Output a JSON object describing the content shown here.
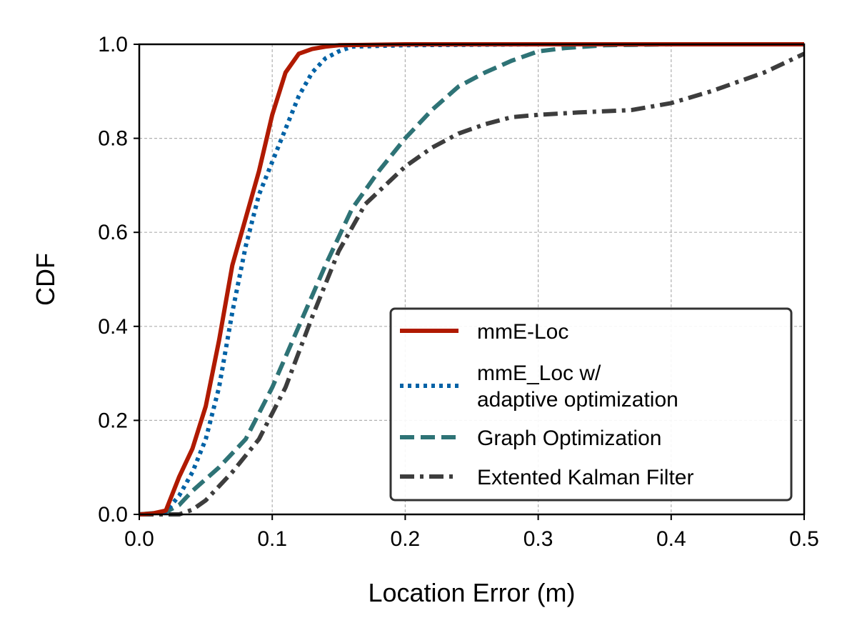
{
  "chart_data": {
    "type": "line",
    "title": "",
    "xlabel": "Location Error (m)",
    "ylabel": "CDF",
    "xlim": [
      0.0,
      0.5
    ],
    "ylim": [
      0.0,
      1.0
    ],
    "xticks": [
      0.0,
      0.1,
      0.2,
      0.3,
      0.4,
      0.5
    ],
    "yticks": [
      0.0,
      0.2,
      0.4,
      0.6,
      0.8,
      1.0
    ],
    "xtick_labels": [
      "0.0",
      "0.1",
      "0.2",
      "0.3",
      "0.4",
      "0.5"
    ],
    "ytick_labels": [
      "0.0",
      "0.2",
      "0.4",
      "0.6",
      "0.8",
      "1.0"
    ],
    "grid": true,
    "legend_position": "lower-right",
    "series": [
      {
        "name": "mmE-Loc",
        "color": "#b01a00",
        "style": "solid",
        "x": [
          0.0,
          0.01,
          0.02,
          0.03,
          0.04,
          0.05,
          0.06,
          0.07,
          0.08,
          0.09,
          0.1,
          0.11,
          0.12,
          0.13,
          0.14,
          0.15,
          0.2,
          0.3,
          0.4,
          0.5
        ],
        "y": [
          0.0,
          0.002,
          0.008,
          0.08,
          0.14,
          0.23,
          0.37,
          0.53,
          0.63,
          0.73,
          0.85,
          0.94,
          0.98,
          0.99,
          0.995,
          0.998,
          1.0,
          1.0,
          1.0,
          1.0
        ]
      },
      {
        "name": "mmE_Loc w/\nadaptive optimization",
        "legend_lines": [
          "mmE_Loc w/",
          "adaptive optimization"
        ],
        "color": "#0062a6",
        "style": "dotted",
        "x": [
          0.0,
          0.01,
          0.02,
          0.03,
          0.04,
          0.05,
          0.06,
          0.07,
          0.08,
          0.09,
          0.1,
          0.11,
          0.12,
          0.13,
          0.14,
          0.15,
          0.16,
          0.2,
          0.3,
          0.4,
          0.5
        ],
        "y": [
          0.0,
          0.002,
          0.006,
          0.04,
          0.09,
          0.16,
          0.27,
          0.43,
          0.57,
          0.68,
          0.75,
          0.82,
          0.89,
          0.94,
          0.97,
          0.985,
          0.995,
          0.998,
          1.0,
          1.0,
          1.0
        ]
      },
      {
        "name": "Graph Optimization",
        "color": "#2e7376",
        "style": "dashed",
        "x": [
          0.0,
          0.02,
          0.03,
          0.04,
          0.06,
          0.08,
          0.1,
          0.12,
          0.14,
          0.16,
          0.18,
          0.2,
          0.22,
          0.24,
          0.26,
          0.28,
          0.3,
          0.32,
          0.35,
          0.4,
          0.5
        ],
        "y": [
          0.0,
          0.005,
          0.02,
          0.05,
          0.1,
          0.16,
          0.27,
          0.4,
          0.53,
          0.65,
          0.73,
          0.8,
          0.86,
          0.91,
          0.94,
          0.965,
          0.985,
          0.992,
          0.998,
          1.0,
          1.0
        ]
      },
      {
        "name": "Extented Kalman Filter",
        "color": "#3d3d3d",
        "style": "dashdot",
        "x": [
          0.0,
          0.03,
          0.04,
          0.05,
          0.07,
          0.09,
          0.11,
          0.13,
          0.15,
          0.17,
          0.2,
          0.22,
          0.24,
          0.26,
          0.28,
          0.3,
          0.33,
          0.37,
          0.4,
          0.43,
          0.47,
          0.5
        ],
        "y": [
          0.0,
          0.0,
          0.01,
          0.03,
          0.09,
          0.16,
          0.27,
          0.42,
          0.56,
          0.66,
          0.74,
          0.78,
          0.81,
          0.83,
          0.845,
          0.85,
          0.855,
          0.86,
          0.875,
          0.9,
          0.94,
          0.98
        ]
      }
    ]
  }
}
